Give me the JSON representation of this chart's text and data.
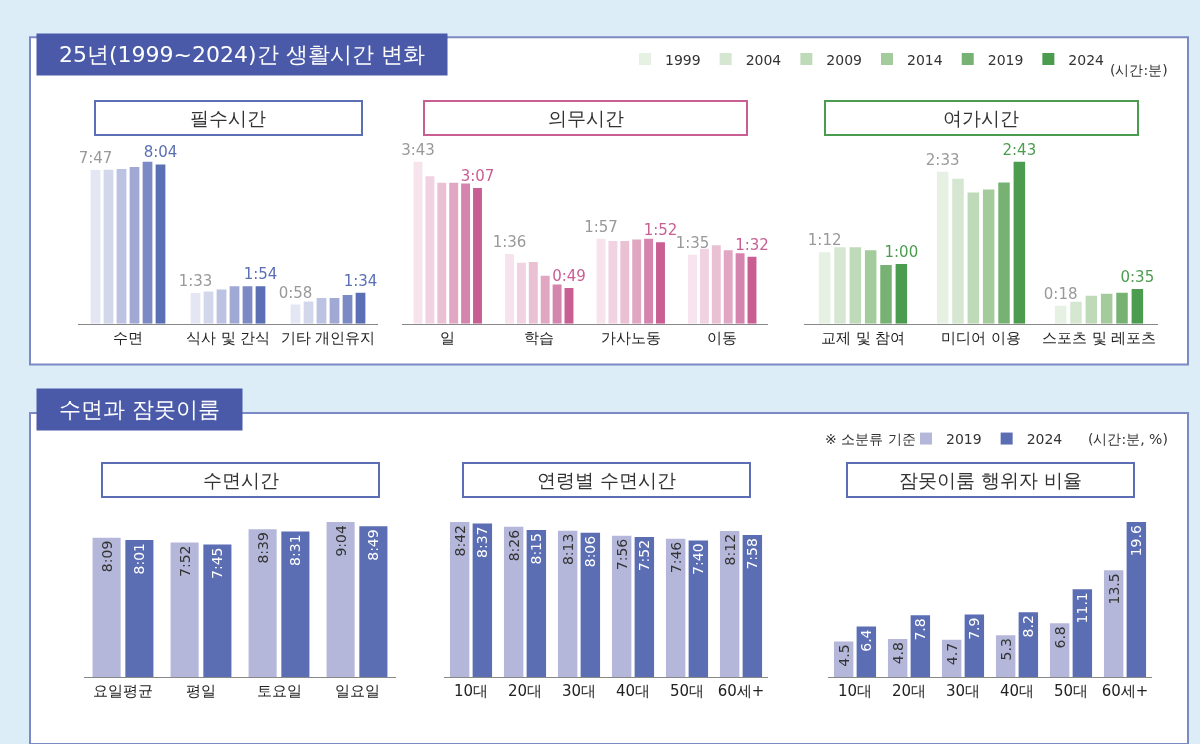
{
  "chart_data": [
    {
      "type": "bar",
      "title": "필수시간",
      "tick_labels": "x",
      "annotations": [
        "25년(1999~2024)간 생활시간 변화"
      ],
      "categories": [
        "수면",
        "식사 및 간식",
        "기타 개인유지"
      ],
      "series": [
        {
          "color": "#e4e6f3",
          "values": [
            467,
            93,
            58
          ],
          "value_labels": [
            "7:47",
            "1:33",
            "0:58"
          ]
        },
        {
          "color": "#d3d7ec",
          "values": [
            468,
            98,
            67
          ],
          "value_labels": [
            null,
            null,
            null
          ]
        },
        {
          "color": "#bcc2e1",
          "values": [
            470,
            104,
            78
          ],
          "value_labels": [
            null,
            null,
            null
          ]
        },
        {
          "color": "#a0a9d4",
          "values": [
            476,
            114,
            78
          ],
          "value_labels": [
            null,
            null,
            null
          ]
        },
        {
          "color": "#7b89c4",
          "values": [
            492,
            114,
            87
          ],
          "value_labels": [
            null,
            null,
            null
          ]
        },
        {
          "color": "#5a6fb4",
          "values": [
            484,
            114,
            94
          ],
          "value_labels": [
            "8:04",
            "1:54",
            "1:34"
          ]
        }
      ]
    },
    {
      "type": "bar",
      "title": "의무시간",
      "tick_labels": "x",
      "categories": [
        "일",
        "학습",
        "가사노동",
        "이동"
      ],
      "series": [
        {
          "color": "#f7e3ec",
          "values": [
            223,
            96,
            117,
            95
          ],
          "value_labels": [
            "3:43",
            "1:36",
            "1:57",
            "1:35"
          ]
        },
        {
          "color": "#f1d2e0",
          "values": [
            203,
            84,
            114,
            103
          ],
          "value_labels": [
            null,
            null,
            null,
            null
          ]
        },
        {
          "color": "#eac0d3",
          "values": [
            194,
            85,
            114,
            108
          ],
          "value_labels": [
            null,
            null,
            null,
            null
          ]
        },
        {
          "color": "#e0a6c2",
          "values": [
            194,
            66,
            116,
            101
          ],
          "value_labels": [
            null,
            null,
            null,
            null
          ]
        },
        {
          "color": "#d584ad",
          "values": [
            193,
            54,
            117,
            97
          ],
          "value_labels": [
            null,
            null,
            null,
            null
          ]
        },
        {
          "color": "#c95e93",
          "values": [
            187,
            49,
            112,
            92
          ],
          "value_labels": [
            "3:07",
            "0:49",
            "1:52",
            "1:32"
          ]
        }
      ]
    },
    {
      "type": "bar",
      "title": "여가시간",
      "tick_labels": "x",
      "legend": "top",
      "annotations": [
        "(시간:분)"
      ],
      "categories": [
        "교제 및 참여",
        "미디어 이용",
        "스포츠 및 레포츠"
      ],
      "series": [
        {
          "name": "1999",
          "color": "#e6f0e3",
          "values": [
            72,
            153,
            18
          ],
          "value_labels": [
            "1:12",
            "2:33",
            "0:18"
          ]
        },
        {
          "name": "2004",
          "color": "#d5e7d1",
          "values": [
            77,
            146,
            22
          ],
          "value_labels": [
            null,
            null,
            null
          ]
        },
        {
          "name": "2009",
          "color": "#bfdab9",
          "values": [
            77,
            132,
            28
          ],
          "value_labels": [
            null,
            null,
            null
          ]
        },
        {
          "name": "2014",
          "color": "#a3cb9c",
          "values": [
            74,
            135,
            30
          ],
          "value_labels": [
            null,
            null,
            null
          ]
        },
        {
          "name": "2019",
          "color": "#78b273",
          "values": [
            59,
            142,
            31
          ],
          "value_labels": [
            null,
            null,
            null
          ]
        },
        {
          "name": "2024",
          "color": "#4c9c50",
          "values": [
            60,
            163,
            35
          ],
          "value_labels": [
            "1:00",
            "2:43",
            "0:35"
          ]
        }
      ]
    },
    {
      "type": "bar",
      "title": "수면시간",
      "tick_labels": "x",
      "annotations": [
        "수면과 잠못이룸"
      ],
      "categories": [
        "요일평균",
        "평일",
        "토요일",
        "일요일"
      ],
      "series": [
        {
          "color": "#b4b7da",
          "values": [
            489,
            472,
            519,
            544
          ],
          "value_labels": [
            "8:09",
            "7:52",
            "8:39",
            "9:04"
          ]
        },
        {
          "color": "#5b6db3",
          "values": [
            481,
            465,
            511,
            529
          ],
          "value_labels": [
            "8:01",
            "7:45",
            "8:31",
            "8:49"
          ]
        }
      ]
    },
    {
      "type": "bar",
      "title": "연령별 수면시간",
      "tick_labels": "x",
      "categories": [
        "10대",
        "20대",
        "30대",
        "40대",
        "50대",
        "60세+"
      ],
      "series": [
        {
          "color": "#b4b7da",
          "values": [
            522,
            506,
            493,
            476,
            466,
            492
          ],
          "value_labels": [
            "8:42",
            "8:26",
            "8:13",
            "7:56",
            "7:46",
            "8:12"
          ]
        },
        {
          "color": "#5b6db3",
          "values": [
            517,
            495,
            486,
            472,
            460,
            478
          ],
          "value_labels": [
            "8:37",
            "8:15",
            "8:06",
            "7:52",
            "7:40",
            "7:58"
          ]
        }
      ]
    },
    {
      "type": "bar",
      "title": "잠못이룸 행위자 비율",
      "tick_labels": "x",
      "legend": "top right",
      "data_labels": true,
      "annotations": [
        "(시간:분, %)",
        "※ 소분류 기준"
      ],
      "categories": [
        "10대",
        "20대",
        "30대",
        "40대",
        "50대",
        "60세+"
      ],
      "series": [
        {
          "name": "2019",
          "color": "#b4b7da",
          "values": [
            4.5,
            4.8,
            4.7,
            5.3,
            6.8,
            13.5
          ]
        },
        {
          "name": "2024",
          "color": "#5b6db3",
          "values": [
            6.4,
            7.8,
            7.9,
            8.2,
            11.1,
            19.6
          ]
        }
      ]
    }
  ]
}
